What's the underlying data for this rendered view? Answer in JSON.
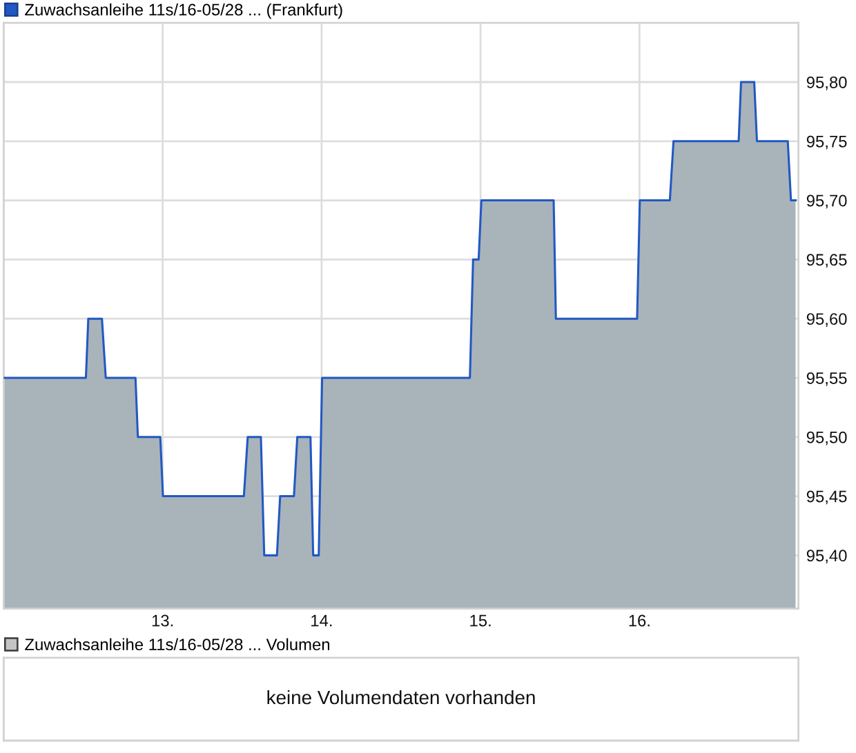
{
  "chart_data": [
    {
      "type": "area",
      "x": [
        12.0,
        12.517,
        12.532,
        12.618,
        12.642,
        12.829,
        12.844,
        12.985,
        13.002,
        13.511,
        13.535,
        13.618,
        13.639,
        13.719,
        13.739,
        13.826,
        13.847,
        13.93,
        13.947,
        13.982,
        14.003,
        14.933,
        14.953,
        14.988,
        15.005,
        15.46,
        15.474,
        15.985,
        16.002,
        16.191,
        16.214,
        16.624,
        16.639,
        16.722,
        16.739,
        16.933,
        16.953,
        16.982
      ],
      "series": [
        {
          "name": "Zuwachsanleihe 11s/16-05/28 ... (Frankfurt)",
          "color": "#2158c4",
          "values": [
            95.55,
            95.55,
            95.6,
            95.6,
            95.55,
            95.55,
            95.5,
            95.5,
            95.45,
            95.45,
            95.5,
            95.5,
            95.4,
            95.4,
            95.45,
            95.45,
            95.5,
            95.5,
            95.4,
            95.4,
            95.55,
            95.55,
            95.65,
            95.65,
            95.7,
            95.7,
            95.6,
            95.6,
            95.7,
            95.7,
            95.75,
            95.75,
            95.8,
            95.8,
            95.75,
            95.75,
            95.7,
            95.7
          ]
        }
      ],
      "xlim": [
        12,
        17
      ],
      "xticks": [
        {
          "value": 13,
          "label": "13."
        },
        {
          "value": 14,
          "label": "14."
        },
        {
          "value": 15,
          "label": "15."
        },
        {
          "value": 16,
          "label": "16."
        }
      ],
      "ylim": [
        95.355,
        95.85
      ],
      "yticks": [
        {
          "value": 95.4,
          "label": "95,40"
        },
        {
          "value": 95.45,
          "label": "95,45"
        },
        {
          "value": 95.5,
          "label": "95,50"
        },
        {
          "value": 95.55,
          "label": "95,55"
        },
        {
          "value": 95.6,
          "label": "95,60"
        },
        {
          "value": 95.65,
          "label": "95,65"
        },
        {
          "value": 95.7,
          "label": "95,70"
        },
        {
          "value": 95.75,
          "label": "95,75"
        },
        {
          "value": 95.8,
          "label": "95,80"
        }
      ],
      "grid": true,
      "legend": "top left"
    },
    {
      "type": "other",
      "series": [
        {
          "name": "Zuwachsanleihe 11s/16-05/28 ... Volumen",
          "color": "#c4c4c4"
        }
      ],
      "legend": "top left",
      "annotations": [
        "keine Volumendaten vorhanden"
      ]
    }
  ]
}
